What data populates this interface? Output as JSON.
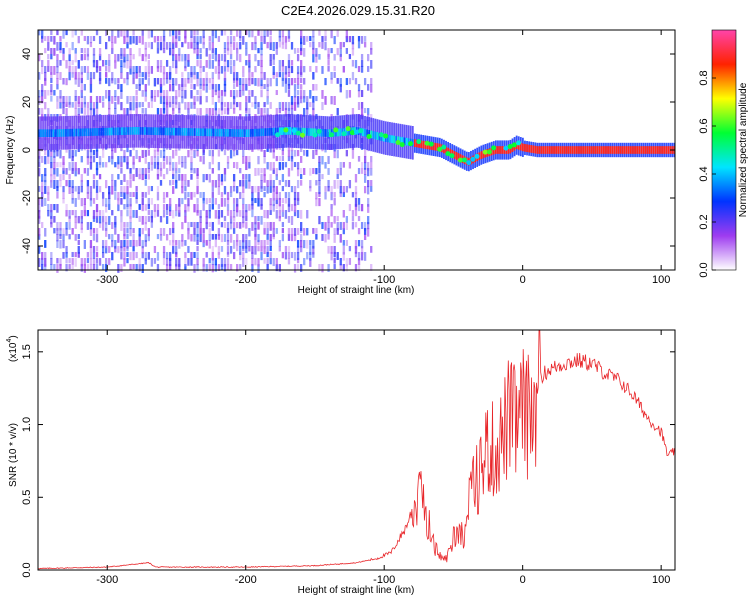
{
  "figure": {
    "title": "C2E4.2026.029.15.31.R20"
  },
  "chart_data": [
    {
      "type": "heatmap",
      "name": "spectrogram",
      "xlabel": "Height of straight line (km)",
      "ylabel": "Frequency (Hz)",
      "xlim": [
        -350,
        110
      ],
      "ylim": [
        -50,
        50
      ],
      "xticks": [
        -300,
        -200,
        -100,
        0,
        100
      ],
      "yticks": [
        -40,
        -20,
        0,
        20,
        40
      ],
      "colorbar": {
        "label": "Normalized spectral amplitude",
        "range": [
          0,
          1
        ],
        "ticks": [
          "0.0",
          "0.2",
          "0.4",
          "0.6",
          "0.8"
        ],
        "tick_values": [
          0.0,
          0.2,
          0.4,
          0.6,
          0.8
        ],
        "colors": [
          "#ffffff",
          "#9e3cf0",
          "#0033ff",
          "#00e5ff",
          "#00ff33",
          "#ffff00",
          "#ff2200",
          "#ff44aa"
        ]
      },
      "ridge": {
        "description": "peak frequency vs height",
        "x": [
          -340,
          -280,
          -200,
          -170,
          -140,
          -120,
          -100,
          -80,
          -60,
          -50,
          -40,
          -30,
          -20,
          -10,
          -5,
          0,
          10,
          50,
          110
        ],
        "y": [
          7,
          8,
          7,
          8,
          7,
          8,
          5,
          3,
          1,
          -2,
          -5,
          -2,
          0,
          0,
          2,
          1,
          0,
          0,
          0
        ]
      }
    },
    {
      "type": "line",
      "name": "snr",
      "xlabel": "Height of straight line (km)",
      "ylabel": "SNR (10 * v/v)",
      "multiplier": "(x10",
      "multiplier_exp": "4",
      "multiplier_close": ")",
      "xlim": [
        -350,
        110
      ],
      "ylim": [
        0,
        1.65
      ],
      "xticks": [
        -300,
        -200,
        -100,
        0,
        100
      ],
      "yticks": [
        "0.0",
        "0.5",
        "1.0",
        "1.5"
      ],
      "ytick_values": [
        0,
        0.5,
        1.0,
        1.5
      ],
      "color": "#e8262a",
      "series": {
        "x": [
          -350,
          -300,
          -270,
          -265,
          -250,
          -200,
          -150,
          -120,
          -105,
          -95,
          -85,
          -78,
          -72,
          -68,
          -65,
          -60,
          -55,
          -48,
          -42,
          -38,
          -35,
          -30,
          -25,
          -20,
          -15,
          -10,
          -5,
          0,
          5,
          10,
          15,
          20,
          30,
          40,
          50,
          60,
          70,
          80,
          90,
          100,
          105,
          110
        ],
        "y": [
          0.01,
          0.02,
          0.05,
          0.02,
          0.02,
          0.02,
          0.03,
          0.05,
          0.08,
          0.12,
          0.28,
          0.45,
          0.55,
          0.35,
          0.2,
          0.1,
          0.08,
          0.3,
          0.25,
          0.55,
          0.6,
          0.75,
          0.9,
          0.85,
          0.95,
          1.1,
          1.05,
          1.15,
          1.1,
          1.25,
          1.35,
          1.38,
          1.42,
          1.44,
          1.42,
          1.35,
          1.3,
          1.2,
          1.05,
          0.95,
          0.78,
          0.82
        ]
      }
    }
  ]
}
